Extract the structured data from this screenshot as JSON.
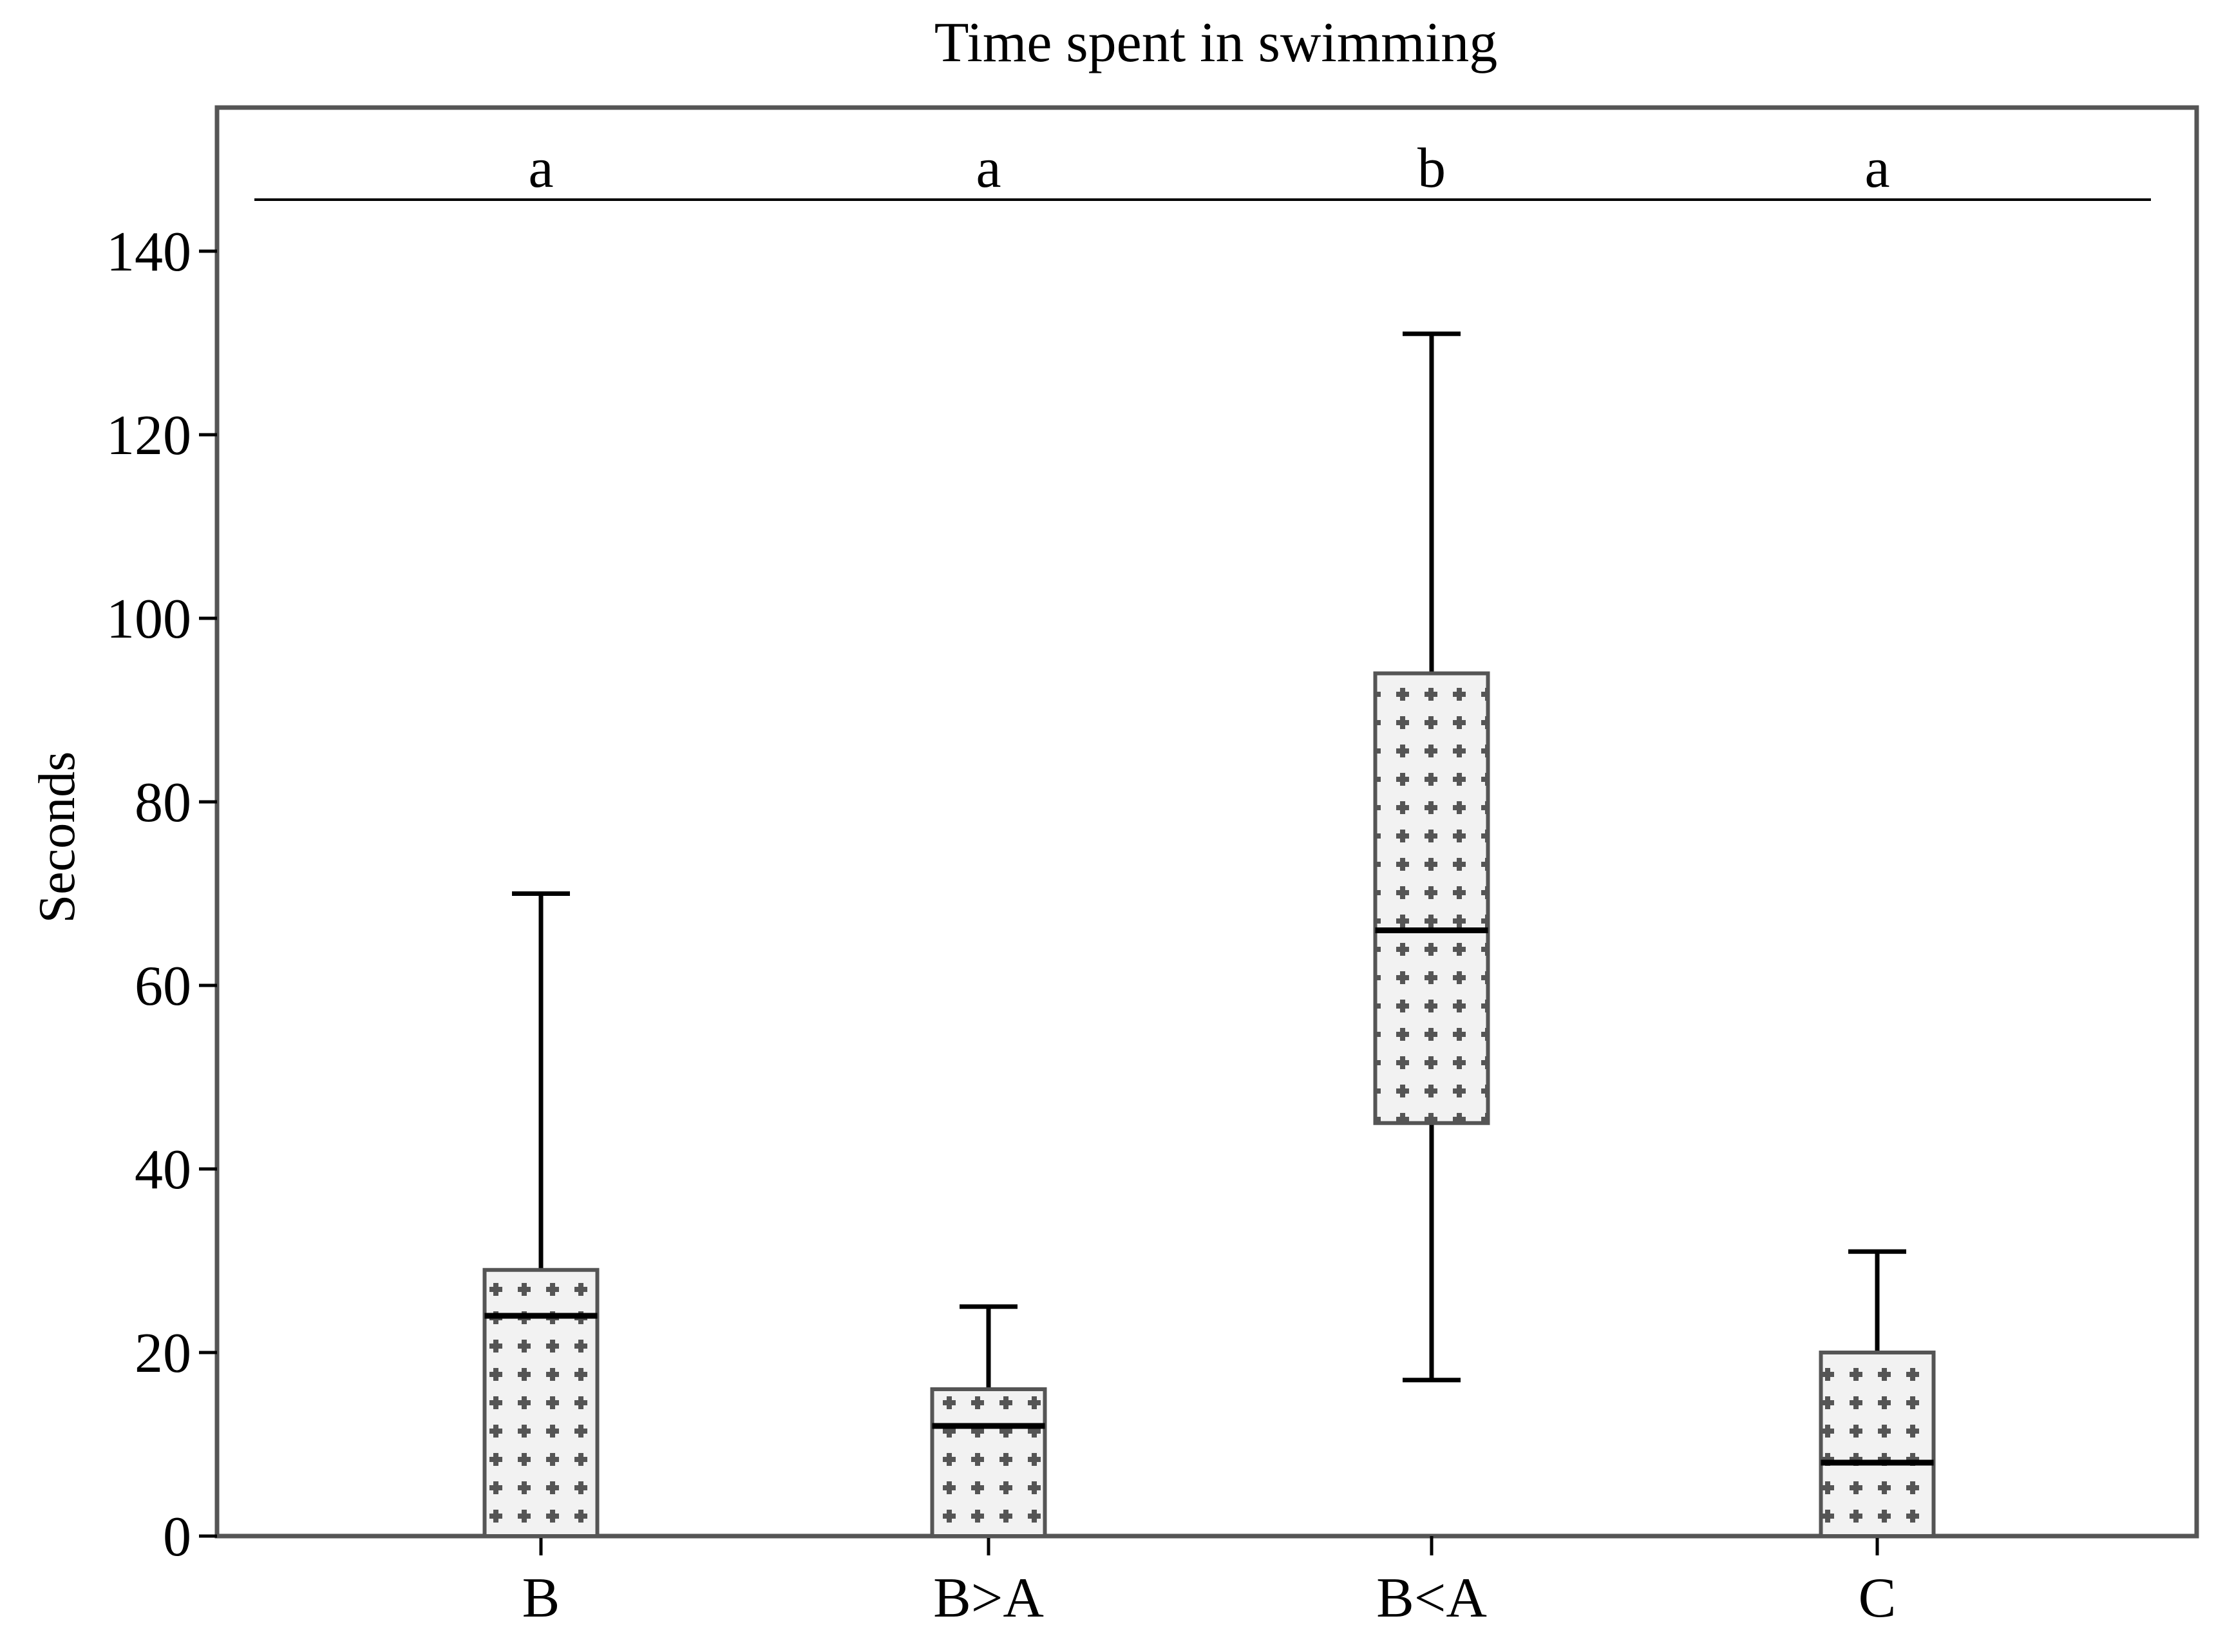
{
  "chart_data": {
    "type": "boxplot",
    "title": "Time spent in swimming",
    "xlabel": "",
    "ylabel": "Seconds",
    "ylim": [
      0,
      150
    ],
    "yticks": [
      0,
      20,
      40,
      60,
      80,
      100,
      120,
      140
    ],
    "grid": false,
    "categories": [
      "B",
      "B>A",
      "B<A",
      "C"
    ],
    "groups": [
      {
        "label": "B",
        "min": 0,
        "q1": 0,
        "median": 24,
        "q3": 29,
        "max": 70,
        "letter": "a"
      },
      {
        "label": "B>A",
        "min": 0,
        "q1": 0,
        "median": 12,
        "q3": 16,
        "max": 25,
        "letter": "a"
      },
      {
        "label": "B<A",
        "min": 17,
        "q1": 45,
        "median": 66,
        "q3": 94,
        "max": 131,
        "letter": "b"
      },
      {
        "label": "C",
        "min": 0,
        "q1": 0,
        "median": 8,
        "q3": 20,
        "max": 31,
        "letter": "a"
      }
    ],
    "colors": {
      "box_fill": "#f2f2f2",
      "pattern": "#555555",
      "line": "#000000",
      "frame": "#555555"
    }
  }
}
